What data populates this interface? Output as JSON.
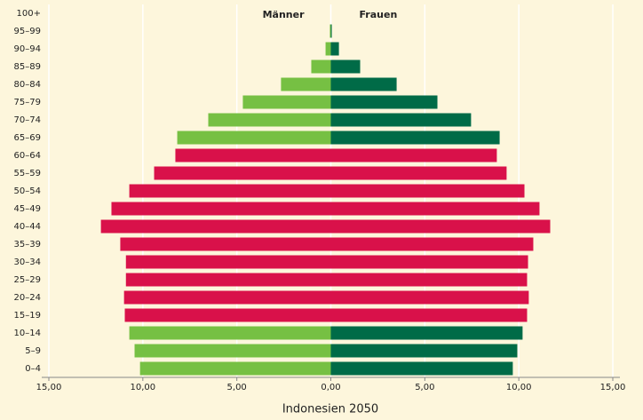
{
  "chart_data": {
    "type": "pyramid",
    "xlabel": "Indonesien 2050",
    "categories": [
      "0–4",
      "5–9",
      "10–14",
      "15–19",
      "20–24",
      "25–29",
      "30–34",
      "35–39",
      "40–44",
      "45–49",
      "50–54",
      "55–59",
      "60–64",
      "65–69",
      "70–74",
      "75–79",
      "80–84",
      "85–89",
      "90–94",
      "95–99",
      "100+"
    ],
    "series": [
      {
        "name": "Männer",
        "values": [
          -10.15,
          -10.44,
          -10.72,
          -10.96,
          -11.0,
          -10.9,
          -10.9,
          -11.2,
          -12.23,
          -11.67,
          -10.72,
          -9.4,
          -8.27,
          -8.17,
          -6.52,
          -4.68,
          -2.65,
          -1.04,
          -0.28,
          -0.05,
          0
        ],
        "colors": [
          "#76c043",
          "#76c043",
          "#76c043",
          "#d9114a",
          "#d9114a",
          "#d9114a",
          "#d9114a",
          "#d9114a",
          "#d9114a",
          "#d9114a",
          "#d9114a",
          "#d9114a",
          "#d9114a",
          "#76c043",
          "#76c043",
          "#76c043",
          "#76c043",
          "#76c043",
          "#76c043",
          "#76c043",
          "#76c043"
        ]
      },
      {
        "name": "Frauen",
        "values": [
          9.68,
          9.92,
          10.2,
          10.44,
          10.53,
          10.44,
          10.49,
          10.77,
          11.67,
          11.1,
          10.3,
          9.35,
          8.83,
          8.98,
          7.46,
          5.67,
          3.5,
          1.56,
          0.43,
          0.05,
          0
        ],
        "colors": [
          "#006b47",
          "#006b47",
          "#006b47",
          "#d9114a",
          "#d9114a",
          "#d9114a",
          "#d9114a",
          "#d9114a",
          "#d9114a",
          "#d9114a",
          "#d9114a",
          "#d9114a",
          "#d9114a",
          "#006b47",
          "#006b47",
          "#006b47",
          "#006b47",
          "#006b47",
          "#006b47",
          "#006b47",
          "#006b47"
        ]
      }
    ],
    "xlim": [
      -15,
      15
    ],
    "xticks": [
      {
        "value": -15,
        "label": "15,00"
      },
      {
        "value": -10,
        "label": "10,00"
      },
      {
        "value": -5,
        "label": "5,00"
      },
      {
        "value": 0,
        "label": "0,00"
      },
      {
        "value": 5,
        "label": "5,00"
      },
      {
        "value": 10,
        "label": "10,00"
      },
      {
        "value": 15,
        "label": "15,00"
      }
    ],
    "grid": true
  }
}
